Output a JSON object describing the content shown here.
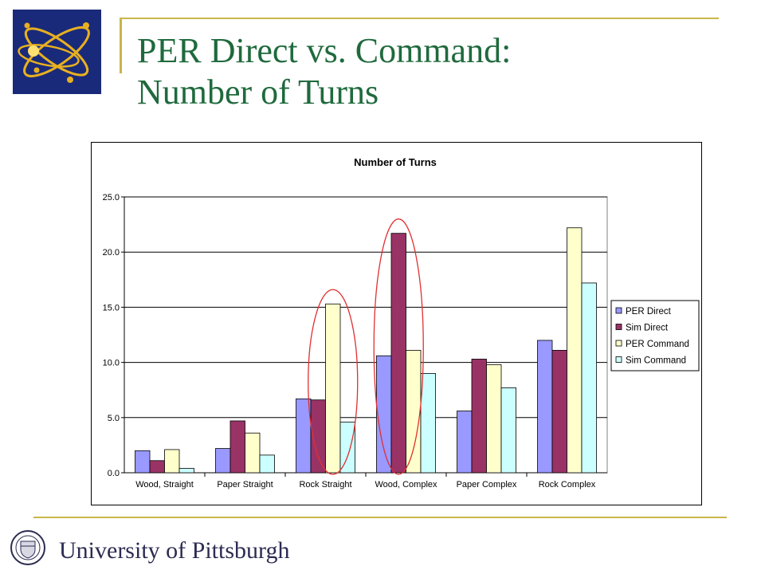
{
  "slide": {
    "title_line1": "PER Direct vs. Command:",
    "title_line2": "Number of Turns",
    "footer_text": "University of Pittsburgh"
  },
  "colors": {
    "title": "#1f6a3d",
    "rule": "#c8b64a",
    "highlight_ellipse": "#e03030",
    "logo_bg": "#1a2a7a",
    "logo_orbit": "#e8b020"
  },
  "icons": {
    "logo": "atom-logo-icon",
    "seal": "university-seal-icon"
  },
  "chart_data": {
    "type": "bar",
    "title": "Number of Turns",
    "xlabel": "",
    "ylabel": "",
    "categories": [
      "Wood, Straight",
      "Paper Straight",
      "Rock Straight",
      "Wood, Complex",
      "Paper Complex",
      "Rock Complex"
    ],
    "series": [
      {
        "name": "PER Direct",
        "color": "#9999ff",
        "values": [
          2.0,
          2.2,
          6.7,
          10.6,
          5.6,
          12.0
        ]
      },
      {
        "name": "Sim Direct",
        "color": "#993366",
        "values": [
          1.1,
          4.7,
          6.6,
          21.7,
          10.3,
          11.1
        ]
      },
      {
        "name": "PER Command",
        "color": "#ffffcc",
        "values": [
          2.1,
          3.6,
          15.3,
          11.1,
          9.8,
          22.2
        ]
      },
      {
        "name": "Sim Command",
        "color": "#ccffff",
        "values": [
          0.4,
          1.6,
          4.6,
          9.0,
          7.7,
          17.2
        ]
      }
    ],
    "ylim": [
      0,
      25
    ],
    "yticks": [
      "0.0",
      "5.0",
      "10.0",
      "15.0",
      "20.0",
      "25.0"
    ],
    "grid": true,
    "legend_position": "right",
    "highlights": [
      {
        "category": "Rock Straight",
        "series": "PER Command"
      },
      {
        "category": "Wood, Complex",
        "series": "Sim Direct"
      }
    ]
  }
}
